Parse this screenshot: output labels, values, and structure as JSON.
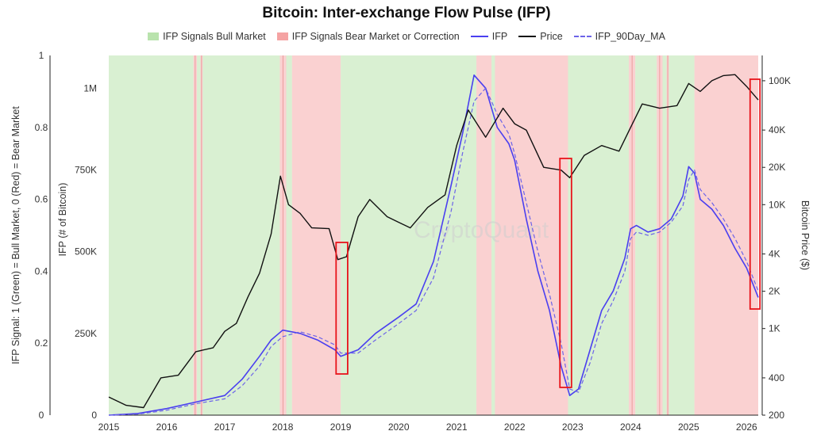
{
  "chart_data": {
    "type": "line",
    "title": "Bitcoin: Inter-exchange Flow Pulse (IFP)",
    "watermark": "CryptoQuant",
    "left_axis_label": "IFP Signal: 1 (Green) = Bull Market, 0 (Red) = Bear Market",
    "left_axis_ticks": [
      "0",
      "0.2",
      "0.4",
      "0.6",
      "0.8",
      "1"
    ],
    "ifp_axis_label": "IFP (# of Bitcoin)",
    "ifp_axis_ticks": [
      "250K",
      "500K",
      "750K",
      "1M"
    ],
    "ifp_axis_values": [
      250000,
      500000,
      750000,
      1000000
    ],
    "price_axis_label": "Bitcoin Price ($)",
    "price_axis_ticks": [
      "200",
      "400",
      "1K",
      "2K",
      "4K",
      "10K",
      "20K",
      "40K",
      "100K"
    ],
    "price_axis_values": [
      200,
      400,
      1000,
      2000,
      4000,
      10000,
      20000,
      40000,
      100000
    ],
    "price_scale": "log",
    "x_ticks": [
      "2015",
      "2016",
      "2017",
      "2018",
      "2019",
      "2020",
      "2021",
      "2022",
      "2023",
      "2024",
      "2025",
      "2026"
    ],
    "x_range": [
      2015.0,
      2026.2
    ],
    "legend_placement": "top-center",
    "legend": [
      {
        "label": "IFP Signals Bull Market",
        "kind": "area",
        "color": "#b9e3ad"
      },
      {
        "label": "IFP Signals Bear Market or Correction",
        "kind": "area",
        "color": "#f5a3a3"
      },
      {
        "label": "IFP",
        "kind": "line",
        "color": "#4a3ff0"
      },
      {
        "label": "Price",
        "kind": "line",
        "color": "#111111"
      },
      {
        "label": "IFP_90Day_MA",
        "kind": "dash",
        "color": "#6c63e8"
      }
    ],
    "regimes": [
      {
        "start": 2015.0,
        "end": 2016.46,
        "signal": 1
      },
      {
        "start": 2016.46,
        "end": 2016.52,
        "signal": 0
      },
      {
        "start": 2016.52,
        "end": 2016.58,
        "signal": 1
      },
      {
        "start": 2016.58,
        "end": 2016.62,
        "signal": 0
      },
      {
        "start": 2016.62,
        "end": 2017.95,
        "signal": 1
      },
      {
        "start": 2017.95,
        "end": 2018.06,
        "signal": 0
      },
      {
        "start": 2018.06,
        "end": 2018.16,
        "signal": 1
      },
      {
        "start": 2018.16,
        "end": 2019.0,
        "signal": 0
      },
      {
        "start": 2019.0,
        "end": 2021.34,
        "signal": 1
      },
      {
        "start": 2021.34,
        "end": 2021.6,
        "signal": 0
      },
      {
        "start": 2021.6,
        "end": 2021.66,
        "signal": 1
      },
      {
        "start": 2021.66,
        "end": 2022.92,
        "signal": 0
      },
      {
        "start": 2022.92,
        "end": 2023.97,
        "signal": 1
      },
      {
        "start": 2023.97,
        "end": 2024.08,
        "signal": 0
      },
      {
        "start": 2024.08,
        "end": 2024.45,
        "signal": 1
      },
      {
        "start": 2024.45,
        "end": 2024.55,
        "signal": 0
      },
      {
        "start": 2024.55,
        "end": 2024.62,
        "signal": 1
      },
      {
        "start": 2024.62,
        "end": 2024.66,
        "signal": 0
      },
      {
        "start": 2024.66,
        "end": 2025.1,
        "signal": 1
      },
      {
        "start": 2025.1,
        "end": 2026.2,
        "signal": 0
      }
    ],
    "series": [
      {
        "name": "IFP",
        "axis": "ifp",
        "x": [
          2015.0,
          2015.5,
          2016.0,
          2016.5,
          2017.0,
          2017.3,
          2017.6,
          2017.8,
          2018.0,
          2018.3,
          2018.6,
          2018.9,
          2019.0,
          2019.3,
          2019.6,
          2020.0,
          2020.3,
          2020.6,
          2020.9,
          2021.1,
          2021.3,
          2021.5,
          2021.7,
          2021.9,
          2022.0,
          2022.2,
          2022.4,
          2022.6,
          2022.8,
          2022.95,
          2023.1,
          2023.3,
          2023.5,
          2023.7,
          2023.9,
          2024.0,
          2024.1,
          2024.3,
          2024.5,
          2024.7,
          2024.9,
          2025.0,
          2025.1,
          2025.2,
          2025.4,
          2025.6,
          2025.8,
          2026.0,
          2026.2
        ],
        "values": [
          0,
          5000,
          20000,
          40000,
          60000,
          110000,
          180000,
          230000,
          260000,
          250000,
          230000,
          200000,
          180000,
          200000,
          250000,
          300000,
          340000,
          470000,
          700000,
          860000,
          1040000,
          1000000,
          880000,
          830000,
          780000,
          600000,
          440000,
          320000,
          150000,
          60000,
          80000,
          200000,
          320000,
          380000,
          480000,
          570000,
          580000,
          560000,
          570000,
          600000,
          670000,
          760000,
          740000,
          660000,
          630000,
          580000,
          510000,
          450000,
          360000
        ]
      },
      {
        "name": "IFP_90Day_MA",
        "axis": "ifp",
        "x": [
          2015.0,
          2015.5,
          2016.0,
          2016.5,
          2017.0,
          2017.3,
          2017.6,
          2017.8,
          2018.0,
          2018.3,
          2018.6,
          2018.9,
          2019.0,
          2019.3,
          2019.6,
          2020.0,
          2020.3,
          2020.6,
          2020.9,
          2021.1,
          2021.3,
          2021.5,
          2021.7,
          2021.9,
          2022.0,
          2022.2,
          2022.4,
          2022.6,
          2022.8,
          2022.95,
          2023.1,
          2023.3,
          2023.5,
          2023.7,
          2023.9,
          2024.0,
          2024.1,
          2024.3,
          2024.5,
          2024.7,
          2024.9,
          2025.0,
          2025.1,
          2025.2,
          2025.4,
          2025.6,
          2025.8,
          2026.0,
          2026.2
        ],
        "values": [
          0,
          3000,
          15000,
          35000,
          50000,
          90000,
          150000,
          210000,
          240000,
          255000,
          240000,
          215000,
          190000,
          190000,
          230000,
          280000,
          320000,
          420000,
          620000,
          800000,
          960000,
          1000000,
          920000,
          860000,
          800000,
          650000,
          500000,
          370000,
          220000,
          80000,
          70000,
          160000,
          280000,
          350000,
          440000,
          540000,
          560000,
          550000,
          560000,
          590000,
          640000,
          720000,
          750000,
          690000,
          650000,
          600000,
          540000,
          470000,
          380000
        ]
      },
      {
        "name": "Price",
        "axis": "price",
        "x": [
          2015.0,
          2015.3,
          2015.6,
          2015.9,
          2016.2,
          2016.5,
          2016.8,
          2017.0,
          2017.2,
          2017.4,
          2017.6,
          2017.8,
          2017.96,
          2018.1,
          2018.3,
          2018.5,
          2018.8,
          2018.95,
          2019.1,
          2019.3,
          2019.5,
          2019.8,
          2020.0,
          2020.2,
          2020.5,
          2020.8,
          2021.0,
          2021.2,
          2021.5,
          2021.8,
          2022.0,
          2022.2,
          2022.5,
          2022.8,
          2022.95,
          2023.2,
          2023.5,
          2023.8,
          2024.0,
          2024.2,
          2024.5,
          2024.8,
          2025.0,
          2025.2,
          2025.4,
          2025.6,
          2025.8,
          2026.0,
          2026.2
        ],
        "values": [
          280,
          240,
          230,
          400,
          420,
          650,
          700,
          950,
          1100,
          1800,
          2800,
          5800,
          17000,
          10000,
          8500,
          6500,
          6400,
          3600,
          3800,
          8000,
          11000,
          8000,
          7200,
          6500,
          9500,
          12000,
          30000,
          58000,
          35000,
          60000,
          45000,
          40000,
          20000,
          19000,
          16500,
          25000,
          30000,
          27000,
          42000,
          65000,
          60000,
          63000,
          95000,
          82000,
          100000,
          110000,
          112000,
          90000,
          70000
        ]
      }
    ],
    "highlight_boxes": [
      {
        "x_start": 2018.92,
        "x_end": 2019.12
      },
      {
        "x_start": 2022.78,
        "x_end": 2022.98
      },
      {
        "x_start": 2026.06,
        "x_end": 2026.23
      }
    ]
  }
}
